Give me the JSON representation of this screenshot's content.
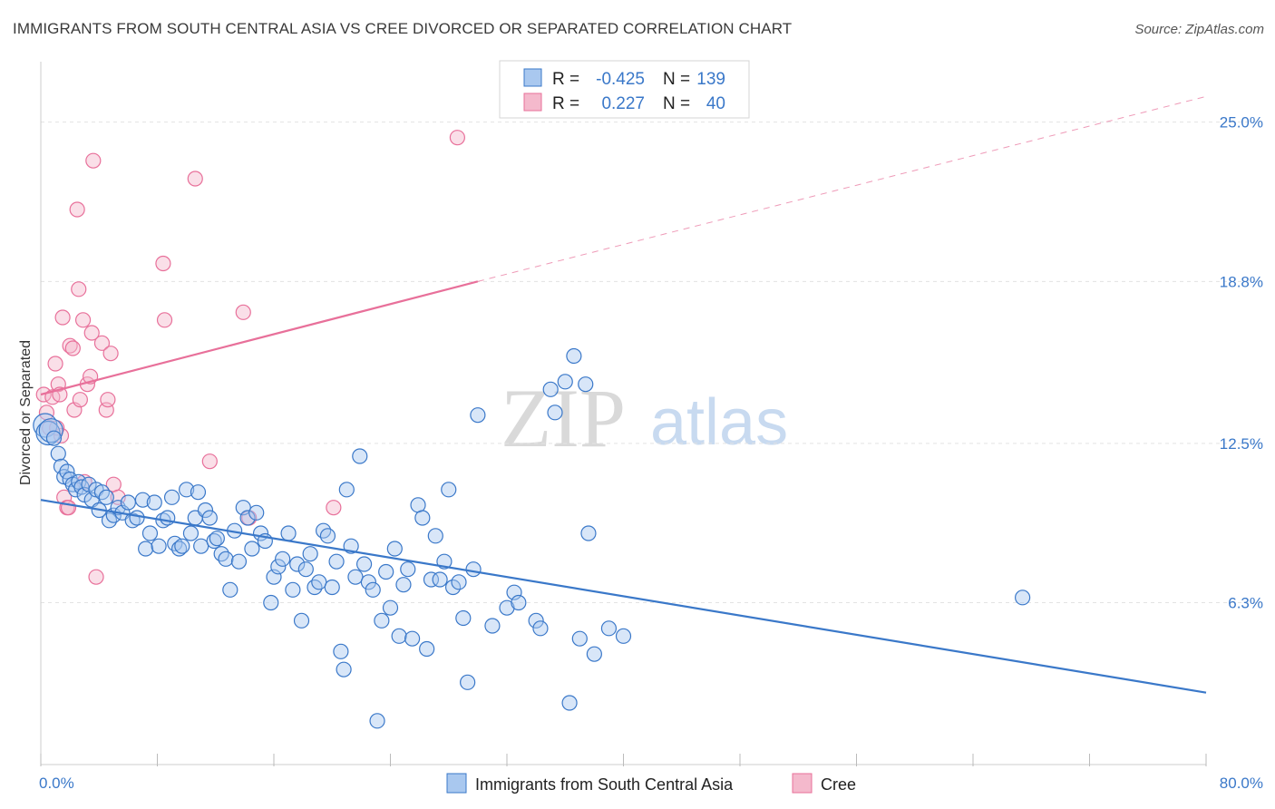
{
  "title": "IMMIGRANTS FROM SOUTH CENTRAL ASIA VS CREE DIVORCED OR SEPARATED CORRELATION CHART",
  "source": "Source: ZipAtlas.com",
  "watermark": {
    "zip": "ZIP",
    "atlas": "atlas"
  },
  "colors": {
    "blue": "#3a78c9",
    "blue_fill": "#a9c8ef",
    "pink": "#e8709a",
    "pink_fill": "#f4b9cc",
    "grid": "#e3e3e3"
  },
  "legend": {
    "r_label": "R =",
    "n_label": "N =",
    "rows": [
      {
        "r": "-0.425",
        "n": "139"
      },
      {
        "r": "0.227",
        "n": "40"
      }
    ]
  },
  "chart_data": {
    "type": "scatter",
    "ylabel": "Divorced or Separated",
    "xlim": [
      0,
      80
    ],
    "ylim": [
      0,
      27
    ],
    "x_tick_labels": [
      "0.0%",
      "80.0%"
    ],
    "y_ticks": [
      6.3,
      12.5,
      18.8,
      25.0
    ],
    "y_tick_labels": [
      "6.3%",
      "12.5%",
      "18.8%",
      "25.0%"
    ],
    "grid": true,
    "series": [
      {
        "name": "Immigrants from South Central Asia",
        "color": "#3a78c9",
        "trend": {
          "x0": 0,
          "y0": 10.3,
          "x1": 80,
          "y1": 2.8
        },
        "points": [
          [
            0.3,
            13.2
          ],
          [
            0.5,
            12.9
          ],
          [
            0.7,
            13.0
          ],
          [
            0.9,
            12.7
          ],
          [
            1.2,
            12.1
          ],
          [
            1.4,
            11.6
          ],
          [
            1.6,
            11.2
          ],
          [
            1.8,
            11.4
          ],
          [
            2.0,
            11.1
          ],
          [
            2.2,
            10.9
          ],
          [
            2.4,
            10.7
          ],
          [
            2.6,
            11.0
          ],
          [
            2.8,
            10.8
          ],
          [
            3.0,
            10.5
          ],
          [
            3.3,
            10.9
          ],
          [
            3.5,
            10.3
          ],
          [
            3.8,
            10.7
          ],
          [
            4.0,
            9.9
          ],
          [
            4.2,
            10.6
          ],
          [
            4.5,
            10.4
          ],
          [
            4.7,
            9.5
          ],
          [
            5.0,
            9.7
          ],
          [
            5.3,
            10.0
          ],
          [
            5.6,
            9.8
          ],
          [
            6.0,
            10.2
          ],
          [
            6.3,
            9.5
          ],
          [
            6.6,
            9.6
          ],
          [
            7.0,
            10.3
          ],
          [
            7.2,
            8.4
          ],
          [
            7.5,
            9.0
          ],
          [
            7.8,
            10.2
          ],
          [
            8.1,
            8.5
          ],
          [
            8.4,
            9.5
          ],
          [
            8.7,
            9.6
          ],
          [
            9.0,
            10.4
          ],
          [
            9.2,
            8.6
          ],
          [
            9.5,
            8.4
          ],
          [
            9.7,
            8.5
          ],
          [
            10.0,
            10.7
          ],
          [
            10.3,
            9.0
          ],
          [
            10.6,
            9.6
          ],
          [
            10.8,
            10.6
          ],
          [
            11.0,
            8.5
          ],
          [
            11.3,
            9.9
          ],
          [
            11.6,
            9.6
          ],
          [
            11.9,
            8.7
          ],
          [
            12.1,
            8.8
          ],
          [
            12.4,
            8.2
          ],
          [
            12.7,
            8.0
          ],
          [
            13.0,
            6.8
          ],
          [
            13.3,
            9.1
          ],
          [
            13.6,
            7.9
          ],
          [
            13.9,
            10.0
          ],
          [
            14.2,
            9.6
          ],
          [
            14.5,
            8.4
          ],
          [
            14.8,
            9.8
          ],
          [
            15.1,
            9.0
          ],
          [
            15.4,
            8.7
          ],
          [
            15.8,
            6.3
          ],
          [
            16.0,
            7.3
          ],
          [
            16.3,
            7.7
          ],
          [
            16.6,
            8.0
          ],
          [
            17.0,
            9.0
          ],
          [
            17.3,
            6.8
          ],
          [
            17.6,
            7.8
          ],
          [
            17.9,
            5.6
          ],
          [
            18.2,
            7.6
          ],
          [
            18.5,
            8.2
          ],
          [
            18.8,
            6.9
          ],
          [
            19.1,
            7.1
          ],
          [
            19.4,
            9.1
          ],
          [
            19.7,
            8.9
          ],
          [
            20.0,
            6.9
          ],
          [
            20.3,
            7.9
          ],
          [
            20.6,
            4.4
          ],
          [
            20.8,
            3.7
          ],
          [
            21.0,
            10.7
          ],
          [
            21.3,
            8.5
          ],
          [
            21.6,
            7.3
          ],
          [
            21.9,
            12.0
          ],
          [
            22.2,
            7.8
          ],
          [
            22.5,
            7.1
          ],
          [
            22.8,
            6.8
          ],
          [
            23.1,
            1.7
          ],
          [
            23.4,
            5.6
          ],
          [
            23.7,
            7.5
          ],
          [
            24.0,
            6.1
          ],
          [
            24.3,
            8.4
          ],
          [
            24.6,
            5.0
          ],
          [
            24.9,
            7.0
          ],
          [
            25.2,
            7.6
          ],
          [
            25.5,
            4.9
          ],
          [
            25.9,
            10.1
          ],
          [
            26.2,
            9.6
          ],
          [
            26.5,
            4.5
          ],
          [
            26.8,
            7.2
          ],
          [
            27.1,
            8.9
          ],
          [
            27.4,
            7.2
          ],
          [
            27.7,
            7.9
          ],
          [
            28.0,
            10.7
          ],
          [
            28.3,
            6.9
          ],
          [
            28.7,
            7.1
          ],
          [
            29.0,
            5.7
          ],
          [
            29.3,
            3.2
          ],
          [
            29.7,
            7.6
          ],
          [
            30.0,
            13.6
          ],
          [
            31.0,
            5.4
          ],
          [
            32.0,
            6.1
          ],
          [
            32.5,
            6.7
          ],
          [
            32.8,
            6.3
          ],
          [
            34.0,
            5.6
          ],
          [
            34.3,
            5.3
          ],
          [
            35.0,
            14.6
          ],
          [
            35.3,
            13.7
          ],
          [
            36.0,
            14.9
          ],
          [
            36.3,
            2.4
          ],
          [
            36.6,
            15.9
          ],
          [
            37.0,
            4.9
          ],
          [
            37.4,
            14.8
          ],
          [
            37.6,
            9.0
          ],
          [
            38.0,
            4.3
          ],
          [
            39.0,
            5.3
          ],
          [
            40.0,
            5.0
          ],
          [
            67.4,
            6.5
          ]
        ]
      },
      {
        "name": "Cree",
        "color": "#e8709a",
        "trend": {
          "x0": 0,
          "y0": 14.4,
          "x1": 30,
          "y1": 18.8,
          "x2": 80,
          "y2": 26.0
        },
        "points": [
          [
            0.2,
            14.4
          ],
          [
            0.4,
            13.7
          ],
          [
            0.6,
            13.1
          ],
          [
            0.8,
            14.3
          ],
          [
            1.0,
            15.6
          ],
          [
            1.2,
            14.8
          ],
          [
            1.3,
            14.4
          ],
          [
            1.4,
            12.8
          ],
          [
            1.5,
            17.4
          ],
          [
            1.6,
            10.4
          ],
          [
            1.8,
            10.0
          ],
          [
            2.0,
            16.3
          ],
          [
            2.2,
            16.2
          ],
          [
            2.3,
            13.8
          ],
          [
            2.5,
            21.6
          ],
          [
            2.6,
            18.5
          ],
          [
            2.7,
            14.2
          ],
          [
            2.9,
            17.3
          ],
          [
            3.0,
            11.0
          ],
          [
            3.2,
            14.8
          ],
          [
            3.4,
            15.1
          ],
          [
            3.5,
            16.8
          ],
          [
            3.6,
            23.5
          ],
          [
            3.8,
            7.3
          ],
          [
            4.2,
            16.4
          ],
          [
            4.5,
            13.8
          ],
          [
            4.6,
            14.2
          ],
          [
            4.8,
            16.0
          ],
          [
            5.0,
            10.9
          ],
          [
            5.3,
            10.4
          ],
          [
            8.4,
            19.5
          ],
          [
            8.5,
            17.3
          ],
          [
            10.6,
            22.8
          ],
          [
            11.6,
            11.8
          ],
          [
            13.9,
            17.6
          ],
          [
            14.3,
            9.6
          ],
          [
            20.1,
            10.0
          ],
          [
            28.6,
            24.4
          ],
          [
            1.1,
            13.1
          ],
          [
            1.9,
            10.0
          ]
        ]
      }
    ]
  }
}
